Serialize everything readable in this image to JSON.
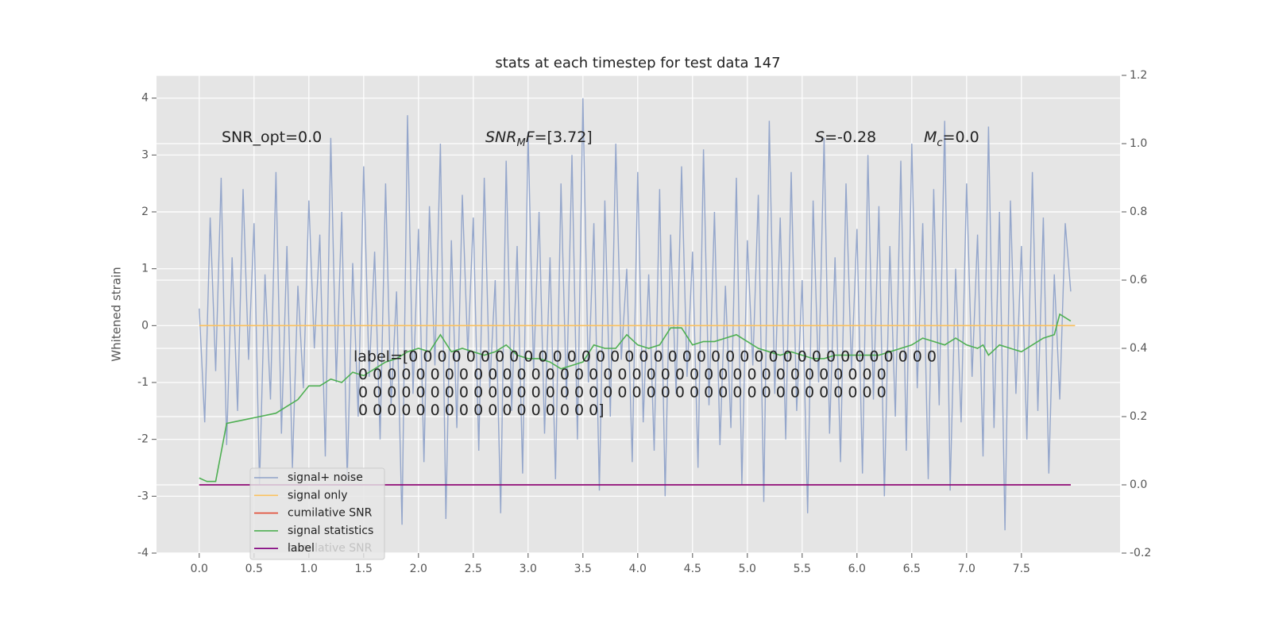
{
  "chart_data": {
    "type": "line",
    "title": "stats at each timestep for test data 147",
    "ylabel": "Whitened strain",
    "xlim": [
      -0.39,
      8.4
    ],
    "ylim": [
      -4,
      4.4
    ],
    "y2lim": [
      -0.2,
      1.2
    ],
    "xticks": [
      {
        "value": 0,
        "label": "0.0"
      },
      0.5,
      {
        "value": 1,
        "label": "1.0"
      },
      1.5,
      {
        "value": 2,
        "label": "2.0"
      },
      2.5,
      {
        "value": 3,
        "label": "3.0"
      },
      3.5,
      {
        "value": 4,
        "label": "4.0"
      },
      4.5,
      {
        "value": 5,
        "label": "5.0"
      },
      5.5,
      {
        "value": 6,
        "label": "6.0"
      },
      6.5,
      {
        "value": 7,
        "label": "7.0"
      },
      7.5
    ],
    "yticks": [
      -4,
      -3,
      -2,
      -1,
      0,
      1,
      2,
      3,
      4
    ],
    "y2ticks": [
      -0.2,
      {
        "value": 0,
        "label": "0.0"
      },
      0.2,
      0.4,
      0.6,
      0.8,
      {
        "value": 1,
        "label": "1.0"
      },
      1.2
    ],
    "grid": true,
    "legend": "lower left",
    "series": [
      {
        "name": "signal+ noise",
        "color": "#8fa2c9",
        "x": [
          0,
          0.05,
          0.1,
          0.15,
          0.2,
          0.25,
          0.3,
          0.35,
          0.4,
          0.45,
          0.5,
          0.55,
          0.6,
          0.65,
          0.7,
          0.75,
          0.8,
          0.85,
          0.9,
          0.95,
          1,
          1.05,
          1.1,
          1.15,
          1.2,
          1.25,
          1.3,
          1.35,
          1.4,
          1.45,
          1.5,
          1.55,
          1.6,
          1.65,
          1.7,
          1.75,
          1.8,
          1.85,
          1.9,
          1.95,
          2,
          2.05,
          2.1,
          2.15,
          2.2,
          2.25,
          2.3,
          2.35,
          2.4,
          2.45,
          2.5,
          2.55,
          2.6,
          2.65,
          2.7,
          2.75,
          2.8,
          2.85,
          2.9,
          2.95,
          3,
          3.05,
          3.1,
          3.15,
          3.2,
          3.25,
          3.3,
          3.35,
          3.4,
          3.45,
          3.5,
          3.55,
          3.6,
          3.65,
          3.7,
          3.75,
          3.8,
          3.85,
          3.9,
          3.95,
          4,
          4.05,
          4.1,
          4.15,
          4.2,
          4.25,
          4.3,
          4.35,
          4.4,
          4.45,
          4.5,
          4.55,
          4.6,
          4.65,
          4.7,
          4.75,
          4.8,
          4.85,
          4.9,
          4.95,
          5,
          5.05,
          5.1,
          5.15,
          5.2,
          5.25,
          5.3,
          5.35,
          5.4,
          5.45,
          5.5,
          5.55,
          5.6,
          5.65,
          5.7,
          5.75,
          5.8,
          5.85,
          5.9,
          5.95,
          6,
          6.05,
          6.1,
          6.15,
          6.2,
          6.25,
          6.3,
          6.35,
          6.4,
          6.45,
          6.5,
          6.55,
          6.6,
          6.65,
          6.7,
          6.75,
          6.8,
          6.85,
          6.9,
          6.95,
          7,
          7.05,
          7.1,
          7.15,
          7.2,
          7.25,
          7.3,
          7.35,
          7.4,
          7.45,
          7.5,
          7.55,
          7.6,
          7.65,
          7.7,
          7.75,
          7.8,
          7.85,
          7.9,
          7.95
        ],
        "values": [
          0.3,
          -1.7,
          1.9,
          -0.8,
          2.6,
          -2.1,
          1.2,
          -1.5,
          2.4,
          -0.6,
          1.8,
          -2.8,
          0.9,
          -1.3,
          2.7,
          -1.9,
          1.4,
          -2.5,
          0.7,
          -1.1,
          2.2,
          -0.4,
          1.6,
          -2.3,
          3.3,
          -1.0,
          2.0,
          -2.7,
          1.1,
          -1.6,
          2.8,
          -0.9,
          1.3,
          -2.0,
          2.5,
          -1.4,
          0.6,
          -3.5,
          3.7,
          -1.2,
          1.7,
          -2.4,
          2.1,
          -0.7,
          3.2,
          -3.4,
          1.5,
          -1.8,
          2.3,
          -0.5,
          1.9,
          -2.2,
          2.6,
          -1.1,
          0.8,
          -3.3,
          2.9,
          -1.5,
          1.4,
          -2.6,
          3.4,
          -0.8,
          2.0,
          -1.9,
          1.2,
          -2.7,
          2.5,
          -1.3,
          3.0,
          -2.0,
          4.0,
          -1.0,
          1.8,
          -2.9,
          2.2,
          -1.6,
          3.2,
          -0.6,
          1.0,
          -2.4,
          2.7,
          -1.7,
          0.9,
          -2.2,
          2.4,
          -3.0,
          1.6,
          -1.2,
          2.8,
          -0.9,
          1.3,
          -2.5,
          3.1,
          -1.4,
          2.0,
          -2.1,
          0.7,
          -1.8,
          2.6,
          -2.8,
          1.5,
          -0.7,
          2.3,
          -3.1,
          3.6,
          -1.2,
          1.9,
          -2.0,
          2.7,
          -1.5,
          0.8,
          -3.3,
          2.2,
          -1.0,
          3.3,
          -1.9,
          1.2,
          -2.4,
          2.5,
          -0.8,
          1.7,
          -2.6,
          3.0,
          -1.3,
          2.1,
          -3.0,
          1.4,
          -1.6,
          2.9,
          -2.2,
          3.2,
          -1.1,
          1.8,
          -2.7,
          2.4,
          -1.4,
          3.6,
          -2.9,
          1.0,
          -1.7,
          2.5,
          -0.9,
          1.6,
          -2.3,
          3.5,
          -1.8,
          2.0,
          -3.6,
          2.2,
          -1.2,
          1.4,
          -2.0,
          2.7,
          -1.5,
          1.9,
          -2.6,
          0.9,
          -1.3,
          1.8,
          0.6
        ]
      },
      {
        "name": "signal only",
        "color": "#fbc15e",
        "x": [
          0,
          7.99
        ],
        "values": [
          0,
          0
        ]
      },
      {
        "name": "cumilative SNR",
        "color": "#e24a33",
        "axis": "y2",
        "x": [
          0,
          7.95
        ],
        "values": [
          0,
          0
        ]
      },
      {
        "name": "signal statistics",
        "color": "#4eaf52",
        "axis": "y2",
        "x": [
          0,
          0.07,
          0.15,
          0.25,
          0.4,
          0.55,
          0.7,
          0.8,
          0.9,
          1,
          1.1,
          1.2,
          1.3,
          1.4,
          1.5,
          1.6,
          1.7,
          1.8,
          1.9,
          2,
          2.1,
          2.2,
          2.3,
          2.4,
          2.5,
          2.6,
          2.7,
          2.8,
          2.9,
          3,
          3.1,
          3.2,
          3.3,
          3.4,
          3.5,
          3.6,
          3.7,
          3.8,
          3.9,
          4,
          4.1,
          4.2,
          4.3,
          4.4,
          4.5,
          4.6,
          4.7,
          4.8,
          4.9,
          5,
          5.1,
          5.2,
          5.3,
          5.4,
          5.5,
          5.6,
          5.7,
          5.8,
          5.9,
          6,
          6.1,
          6.2,
          6.3,
          6.4,
          6.5,
          6.6,
          6.7,
          6.8,
          6.9,
          7,
          7.1,
          7.15,
          7.2,
          7.3,
          7.4,
          7.5,
          7.6,
          7.7,
          7.8,
          7.85,
          7.95
        ],
        "values": [
          0.02,
          0.01,
          0.01,
          0.18,
          0.19,
          0.2,
          0.21,
          0.23,
          0.25,
          0.29,
          0.29,
          0.31,
          0.3,
          0.33,
          0.32,
          0.34,
          0.36,
          0.37,
          0.39,
          0.4,
          0.39,
          0.44,
          0.39,
          0.4,
          0.39,
          0.38,
          0.39,
          0.41,
          0.38,
          0.37,
          0.37,
          0.36,
          0.34,
          0.35,
          0.36,
          0.41,
          0.4,
          0.4,
          0.44,
          0.41,
          0.4,
          0.41,
          0.46,
          0.46,
          0.41,
          0.42,
          0.42,
          0.43,
          0.44,
          0.42,
          0.4,
          0.39,
          0.38,
          0.39,
          0.38,
          0.37,
          0.37,
          0.38,
          0.38,
          0.38,
          0.38,
          0.38,
          0.39,
          0.4,
          0.41,
          0.43,
          0.42,
          0.41,
          0.43,
          0.41,
          0.4,
          0.41,
          0.38,
          0.41,
          0.4,
          0.39,
          0.41,
          0.43,
          0.44,
          0.5,
          0.48
        ]
      },
      {
        "name": "label",
        "color": "#800080",
        "axis": "y2",
        "x": [
          0,
          7.95
        ],
        "values": [
          0,
          0
        ]
      }
    ],
    "annotations": [
      {
        "parts": [
          {
            "text": "SNR_opt=0.0"
          }
        ]
      },
      {
        "parts": [
          {
            "text": "SNR",
            "style": "italic"
          },
          {
            "text": "M",
            "style": "sub"
          },
          {
            "text": "F",
            "style": "italic"
          },
          {
            "text": "=[3.72]"
          }
        ]
      },
      {
        "parts": [
          {
            "text": "S",
            "style": "italic"
          },
          {
            "text": "=-0.28"
          }
        ]
      },
      {
        "parts": [
          {
            "text": "M",
            "style": "italic"
          },
          {
            "text": "c",
            "style": "sub"
          },
          {
            "text": "=0.0"
          }
        ]
      }
    ],
    "label_text": {
      "lines": [
        "label=[0 0 0 0 0 0 0 0 0 0 0 0 0 0 0 0 0 0 0 0 0 0 0 0 0 0 0 0 0 0 0 0 0 0 0 0 0",
        " 0 0 0 0 0 0 0 0 0 0 0 0 0 0 0 0 0 0 0 0 0 0 0 0 0 0 0 0 0 0 0 0 0 0 0 0 0",
        " 0 0 0 0 0 0 0 0 0 0 0 0 0 0 0 0 0 0 0 0 0 0 0 0 0 0 0 0 0 0 0 0 0 0 0 0 0",
        " 0 0 0 0 0 0 0 0 0 0 0 0 0 0 0 0 0]"
      ]
    }
  }
}
